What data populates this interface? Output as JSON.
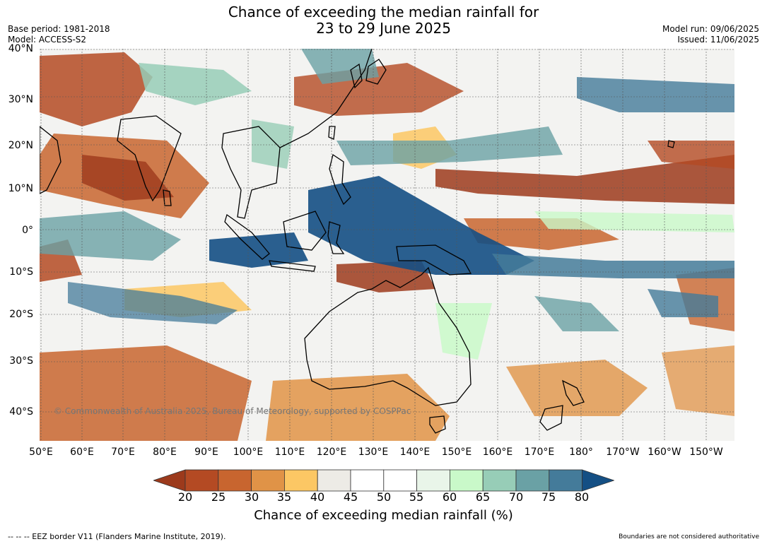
{
  "title_line1": "Chance of exceeding the median rainfall for",
  "title_line2": "23 to 29 June 2025",
  "base_period": "Base period: 1981-2018",
  "model": "Model: ACCESS-S2",
  "model_run": "Model run: 09/06/2025",
  "issued": "Issued: 11/06/2025",
  "copyright": "© Commonwealth of Australia 2025, Bureau of Meteorology, supported by COSPPac",
  "footer_left": "--  --  -- EEZ border V11 (Flanders Marine Institute, 2019).",
  "footer_right": "Boundaries are not considered authoritative",
  "lat_labels": [
    "40°N",
    "30°N",
    "20°N",
    "10°N",
    "0°",
    "10°S",
    "20°S",
    "30°S",
    "40°S"
  ],
  "lon_labels": [
    "50°E",
    "60°E",
    "70°E",
    "80°E",
    "90°E",
    "100°E",
    "110°E",
    "120°E",
    "130°E",
    "140°E",
    "150°E",
    "160°E",
    "170°E",
    "180°",
    "170°W",
    "160°W",
    "150°W"
  ],
  "colorbar": {
    "label": "Chance of exceeding median rainfall (%)",
    "ticks": [
      "20",
      "25",
      "30",
      "35",
      "40",
      "45",
      "50",
      "55",
      "60",
      "65",
      "70",
      "75",
      "80"
    ],
    "colors": [
      "#9c3a1c",
      "#b44a23",
      "#c8652f",
      "#e09347",
      "#fcc764",
      "#edebe6",
      "#ffffff",
      "#ffffff",
      "#e9f5e9",
      "#c9f9c9",
      "#97cdb7",
      "#6aa1a5",
      "#447b9a",
      "#144f84"
    ]
  },
  "map": {
    "ocean_bg": "#f3f3f1"
  }
}
